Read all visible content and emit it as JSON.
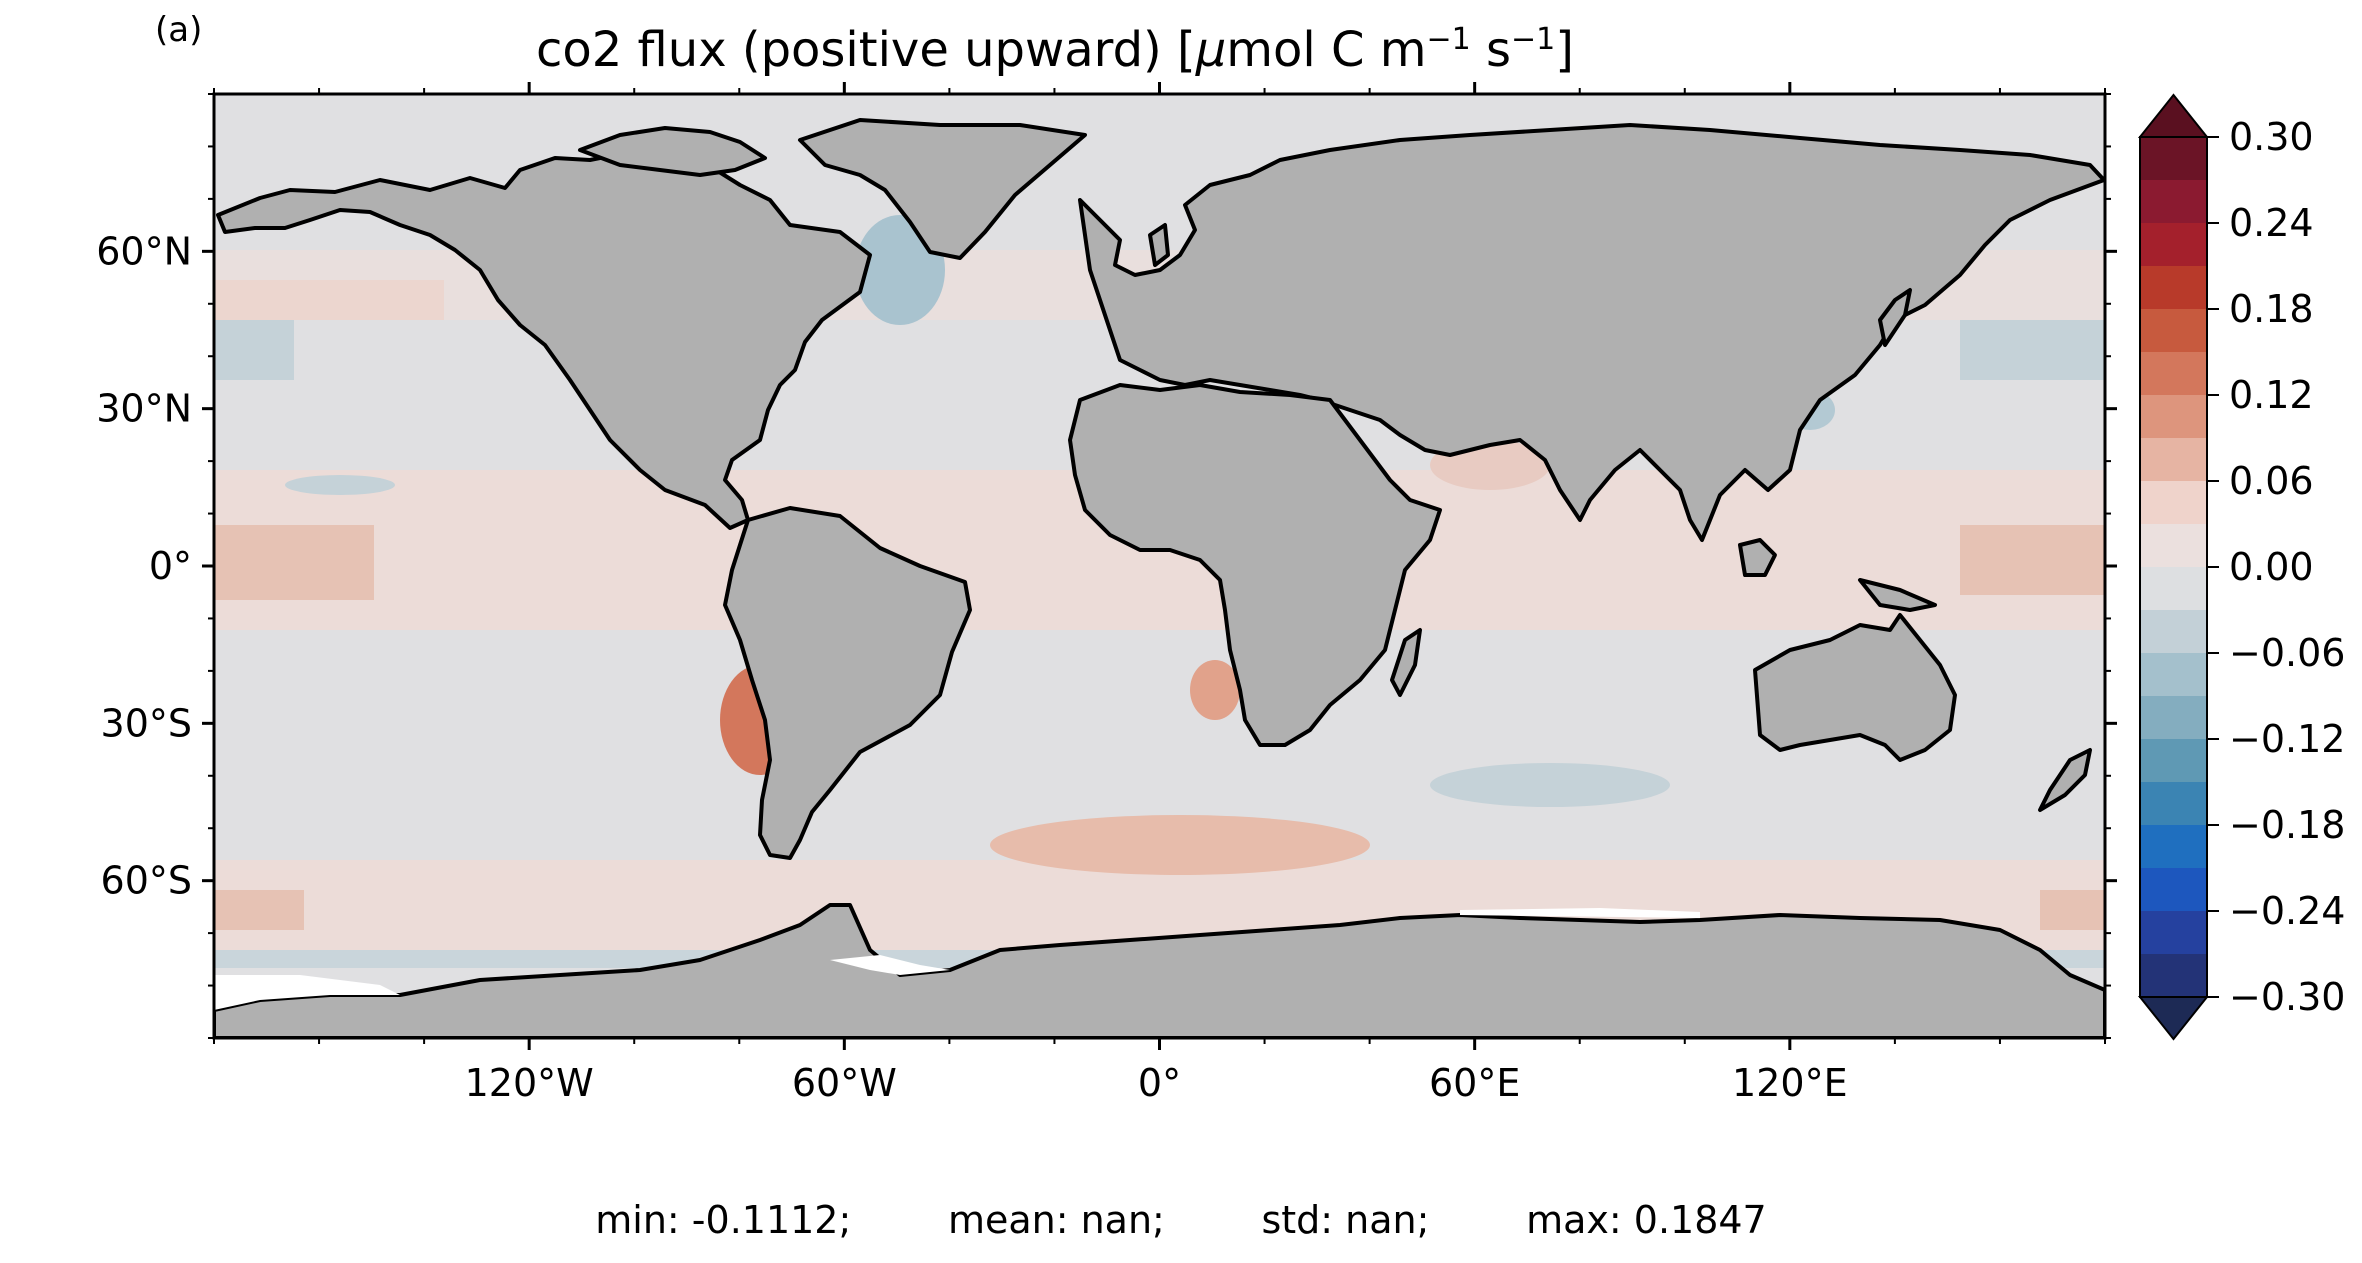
{
  "figure": {
    "panel_label": "(a)",
    "title_text": "co2 flux (positive upward) [",
    "title_mu": "μ",
    "title_unit": "mol C m",
    "title_exp1": "−1",
    "title_s": " s",
    "title_exp2": "−1",
    "title_close": "]",
    "stats": {
      "min": "min: -0.1112;",
      "mean": "mean: nan;",
      "std": "std: nan;",
      "max": "max: 0.1847"
    }
  },
  "map": {
    "projection": "PlateCarree",
    "lon_ticks": [
      {
        "lon": -120,
        "label": "120°W"
      },
      {
        "lon": -60,
        "label": "60°W"
      },
      {
        "lon": 0,
        "label": "0°"
      },
      {
        "lon": 60,
        "label": "60°E"
      },
      {
        "lon": 120,
        "label": "120°E"
      }
    ],
    "lat_ticks": [
      {
        "lat": 60,
        "label": "60°N"
      },
      {
        "lat": 30,
        "label": "30°N"
      },
      {
        "lat": 0,
        "label": "0°"
      },
      {
        "lat": -30,
        "label": "30°S"
      },
      {
        "lat": -60,
        "label": "60°S"
      }
    ],
    "colors": {
      "land": "#b0b0b0",
      "ocean_neutral": "#e0e0e2",
      "ocean_pos": "#ecdcd8",
      "coast": "#000000",
      "ice": "#ffffff"
    }
  },
  "colorbar": {
    "ticks": [
      {
        "value": 0.3,
        "label": "0.30"
      },
      {
        "value": 0.24,
        "label": "0.24"
      },
      {
        "value": 0.18,
        "label": "0.18"
      },
      {
        "value": 0.12,
        "label": "0.12"
      },
      {
        "value": 0.06,
        "label": "0.06"
      },
      {
        "value": 0.0,
        "label": "0.00"
      },
      {
        "value": -0.06,
        "label": "−0.06"
      },
      {
        "value": -0.12,
        "label": "−0.12"
      },
      {
        "value": -0.18,
        "label": "−0.18"
      },
      {
        "value": -0.24,
        "label": "−0.24"
      },
      {
        "value": -0.3,
        "label": "−0.30"
      }
    ],
    "colors_top_to_bottom": [
      "#6b1426",
      "#8b1a30",
      "#a4202c",
      "#b83a2a",
      "#c75a3e",
      "#d3775c",
      "#dd957d",
      "#e6b4a3",
      "#efd3cb",
      "#ebe0de",
      "#dddfe1",
      "#c3d0d7",
      "#a4c0cc",
      "#84adbf",
      "#5f99b4",
      "#3b84b3",
      "#1f6fbf",
      "#1d57be",
      "#25419f",
      "#233377"
    ],
    "extend_top": "#5a1020",
    "extend_bottom": "#1d2a55"
  }
}
